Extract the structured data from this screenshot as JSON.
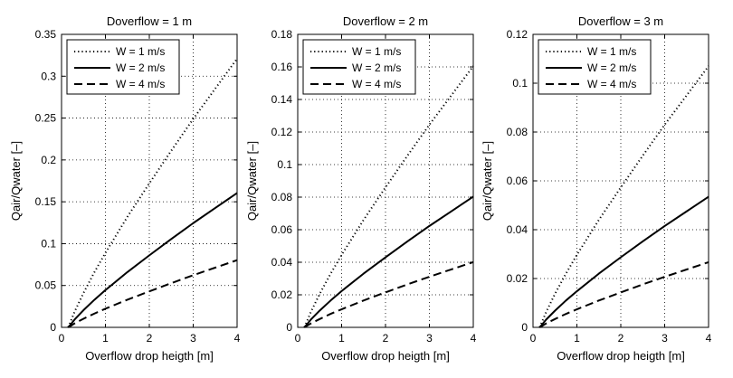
{
  "chart_data": [
    {
      "type": "line",
      "title": "Doverflow = 1 m",
      "xlabel": "Overflow drop heigth [m]",
      "ylabel": "Qair/Qwater [–]",
      "xlim": [
        0,
        4
      ],
      "ylim": [
        0,
        0.35
      ],
      "xticks": [
        0,
        1,
        2,
        3,
        4
      ],
      "xtick_labels": [
        "0",
        "1",
        "2",
        "3",
        "4"
      ],
      "yticks": [
        0,
        0.05,
        0.1,
        0.15,
        0.2,
        0.25,
        0.3,
        0.35
      ],
      "ytick_labels": [
        "0",
        "0.05",
        "0.1",
        "0.15",
        "0.2",
        "0.25",
        "0.3",
        "0.35"
      ],
      "grid": true,
      "legend_position": "top-left",
      "x": [
        0.15,
        0.2,
        0.3,
        0.5,
        0.75,
        1.0,
        1.5,
        2.0,
        2.5,
        3.0,
        3.5,
        4.0
      ],
      "series": [
        {
          "name": "W = 1 m/s",
          "style": "dotted",
          "values": [
            0.0,
            0.006,
            0.019,
            0.041,
            0.066,
            0.089,
            0.132,
            0.172,
            0.211,
            0.249,
            0.285,
            0.321
          ]
        },
        {
          "name": "W = 2 m/s",
          "style": "solid",
          "values": [
            0.0,
            0.003,
            0.0095,
            0.0205,
            0.033,
            0.0445,
            0.066,
            0.086,
            0.1055,
            0.1245,
            0.1425,
            0.1605
          ]
        },
        {
          "name": "W = 4 m/s",
          "style": "dashed",
          "values": [
            0.0,
            0.0015,
            0.0048,
            0.0103,
            0.0165,
            0.0223,
            0.033,
            0.043,
            0.0528,
            0.0623,
            0.0713,
            0.0803
          ]
        }
      ]
    },
    {
      "type": "line",
      "title": "Doverflow = 2 m",
      "xlabel": "Overflow drop heigth [m]",
      "ylabel": "Qair/Qwater [–]",
      "xlim": [
        0,
        4
      ],
      "ylim": [
        0,
        0.18
      ],
      "xticks": [
        0,
        1,
        2,
        3,
        4
      ],
      "xtick_labels": [
        "0",
        "1",
        "2",
        "3",
        "4"
      ],
      "yticks": [
        0,
        0.02,
        0.04,
        0.06,
        0.08,
        0.1,
        0.12,
        0.14,
        0.16,
        0.18
      ],
      "ytick_labels": [
        "0",
        "0.02",
        "0.04",
        "0.06",
        "0.08",
        "0.1",
        "0.12",
        "0.14",
        "0.16",
        "0.18"
      ],
      "grid": true,
      "legend_position": "top-left",
      "x": [
        0.15,
        0.2,
        0.3,
        0.5,
        0.75,
        1.0,
        1.5,
        2.0,
        2.5,
        3.0,
        3.5,
        4.0
      ],
      "series": [
        {
          "name": "W = 1 m/s",
          "style": "dotted",
          "values": [
            0.0,
            0.003,
            0.0095,
            0.0205,
            0.033,
            0.0445,
            0.066,
            0.086,
            0.1055,
            0.1245,
            0.1425,
            0.1605
          ]
        },
        {
          "name": "W = 2 m/s",
          "style": "solid",
          "values": [
            0.0,
            0.0015,
            0.0048,
            0.0103,
            0.0165,
            0.0223,
            0.033,
            0.043,
            0.0528,
            0.0623,
            0.0713,
            0.0803
          ]
        },
        {
          "name": "W = 4 m/s",
          "style": "dashed",
          "values": [
            0.0,
            0.0008,
            0.0024,
            0.0051,
            0.0083,
            0.0111,
            0.0165,
            0.0215,
            0.0264,
            0.0311,
            0.0356,
            0.0401
          ]
        }
      ]
    },
    {
      "type": "line",
      "title": "Doverflow = 3 m",
      "xlabel": "Overflow drop heigth [m]",
      "ylabel": "Qair/Qwater [–]",
      "xlim": [
        0,
        4
      ],
      "ylim": [
        0,
        0.12
      ],
      "xticks": [
        0,
        1,
        2,
        3,
        4
      ],
      "xtick_labels": [
        "0",
        "1",
        "2",
        "3",
        "4"
      ],
      "yticks": [
        0,
        0.02,
        0.04,
        0.06,
        0.08,
        0.1,
        0.12
      ],
      "ytick_labels": [
        "0",
        "0.02",
        "0.04",
        "0.06",
        "0.08",
        "0.1",
        "0.12"
      ],
      "grid": true,
      "legend_position": "top-left",
      "x": [
        0.15,
        0.2,
        0.3,
        0.5,
        0.75,
        1.0,
        1.5,
        2.0,
        2.5,
        3.0,
        3.5,
        4.0
      ],
      "series": [
        {
          "name": "W = 1 m/s",
          "style": "dotted",
          "values": [
            0.0,
            0.002,
            0.0063,
            0.0137,
            0.022,
            0.0297,
            0.044,
            0.0573,
            0.0703,
            0.083,
            0.095,
            0.107
          ]
        },
        {
          "name": "W = 2 m/s",
          "style": "solid",
          "values": [
            0.0,
            0.001,
            0.0032,
            0.0068,
            0.011,
            0.0148,
            0.022,
            0.0287,
            0.0352,
            0.0415,
            0.0475,
            0.0535
          ]
        },
        {
          "name": "W = 4 m/s",
          "style": "dashed",
          "values": [
            0.0,
            0.0005,
            0.0016,
            0.0034,
            0.0055,
            0.0074,
            0.011,
            0.0143,
            0.0176,
            0.0207,
            0.0237,
            0.0267
          ]
        }
      ]
    }
  ]
}
